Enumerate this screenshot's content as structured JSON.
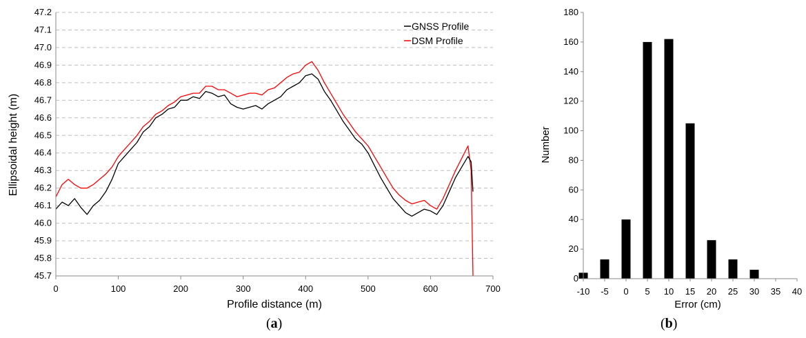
{
  "chart_data": [
    {
      "type": "line",
      "panel_label": "a",
      "title": "",
      "xlabel": "Profile distance (m)",
      "ylabel": "Ellipsoidal height (m)",
      "xlim": [
        0,
        700
      ],
      "ylim": [
        45.7,
        47.2
      ],
      "x_ticks": [
        "0",
        "100",
        "200",
        "300",
        "400",
        "500",
        "600",
        "700"
      ],
      "y_ticks": [
        "45.7",
        "45.8",
        "45.9",
        "46.0",
        "46.1",
        "46.2",
        "46.3",
        "46.4",
        "46.5",
        "46.6",
        "46.7",
        "46.8",
        "46.9",
        "47.0",
        "47.1",
        "47.2"
      ],
      "grid": "horizontal dashed",
      "legend_position": "top-right",
      "series": [
        {
          "name": "GNSS Profile",
          "color": "#000000",
          "x": [
            0,
            10,
            20,
            30,
            40,
            50,
            60,
            70,
            80,
            90,
            100,
            110,
            120,
            130,
            140,
            150,
            160,
            170,
            180,
            190,
            200,
            210,
            220,
            230,
            240,
            250,
            260,
            270,
            280,
            290,
            300,
            310,
            320,
            330,
            340,
            350,
            360,
            370,
            380,
            390,
            400,
            410,
            420,
            430,
            440,
            450,
            460,
            470,
            480,
            490,
            500,
            510,
            520,
            530,
            540,
            550,
            560,
            570,
            580,
            590,
            600,
            610,
            620,
            630,
            640,
            650,
            660,
            665,
            668
          ],
          "values": [
            46.08,
            46.12,
            46.1,
            46.14,
            46.09,
            46.05,
            46.1,
            46.13,
            46.18,
            46.25,
            46.34,
            46.38,
            46.42,
            46.46,
            46.52,
            46.55,
            46.6,
            46.62,
            46.65,
            46.66,
            46.7,
            46.7,
            46.72,
            46.71,
            46.75,
            46.74,
            46.72,
            46.73,
            46.68,
            46.66,
            46.65,
            46.66,
            46.67,
            46.65,
            46.68,
            46.7,
            46.72,
            46.76,
            46.78,
            46.8,
            46.84,
            46.85,
            46.82,
            46.75,
            46.7,
            46.64,
            46.58,
            46.53,
            46.48,
            46.45,
            46.4,
            46.33,
            46.26,
            46.2,
            46.14,
            46.1,
            46.06,
            46.04,
            46.06,
            46.08,
            46.07,
            46.05,
            46.1,
            46.18,
            46.26,
            46.32,
            46.38,
            46.35,
            46.18
          ]
        },
        {
          "name": "DSM Profile",
          "color": "#ff0000",
          "x": [
            0,
            10,
            20,
            30,
            40,
            50,
            60,
            70,
            80,
            90,
            100,
            110,
            120,
            130,
            140,
            150,
            160,
            170,
            180,
            190,
            200,
            210,
            220,
            230,
            240,
            250,
            260,
            270,
            280,
            290,
            300,
            310,
            320,
            330,
            340,
            350,
            360,
            370,
            380,
            390,
            400,
            410,
            420,
            430,
            440,
            450,
            460,
            470,
            480,
            490,
            500,
            510,
            520,
            530,
            540,
            550,
            560,
            570,
            580,
            590,
            600,
            610,
            620,
            630,
            640,
            650,
            660,
            665,
            668
          ],
          "values": [
            46.15,
            46.22,
            46.25,
            46.22,
            46.2,
            46.2,
            46.22,
            46.25,
            46.28,
            46.32,
            46.38,
            46.42,
            46.46,
            46.5,
            46.55,
            46.58,
            46.62,
            46.64,
            46.67,
            46.69,
            46.72,
            46.73,
            46.74,
            46.74,
            46.78,
            46.78,
            46.76,
            46.76,
            46.74,
            46.72,
            46.73,
            46.74,
            46.74,
            46.73,
            46.76,
            46.77,
            46.8,
            46.83,
            46.85,
            46.86,
            46.9,
            46.92,
            46.87,
            46.8,
            46.74,
            46.68,
            46.62,
            46.57,
            46.52,
            46.48,
            46.44,
            46.38,
            46.32,
            46.26,
            46.2,
            46.16,
            46.13,
            46.11,
            46.12,
            46.13,
            46.1,
            46.08,
            46.14,
            46.22,
            46.3,
            46.37,
            46.44,
            46.3,
            45.7
          ]
        }
      ]
    },
    {
      "type": "bar",
      "panel_label": "b",
      "title": "",
      "xlabel": "Error (cm)",
      "ylabel": "Number",
      "xlim": [
        -10,
        40
      ],
      "ylim": [
        0,
        180
      ],
      "x_ticks": [
        "-10",
        "-5",
        "0",
        "5",
        "10",
        "15",
        "20",
        "25",
        "30",
        "35",
        "40"
      ],
      "y_ticks": [
        "0",
        "20",
        "40",
        "60",
        "80",
        "100",
        "120",
        "140",
        "160",
        "180"
      ],
      "categories": [
        "-10",
        "-5",
        "0",
        "5",
        "10",
        "15",
        "20",
        "25",
        "30",
        "35",
        "40"
      ],
      "values": [
        4,
        13,
        40,
        160,
        162,
        105,
        26,
        13,
        6,
        0,
        0
      ],
      "color": "#000000"
    }
  ],
  "captions": {
    "a": "a",
    "b": "b"
  }
}
